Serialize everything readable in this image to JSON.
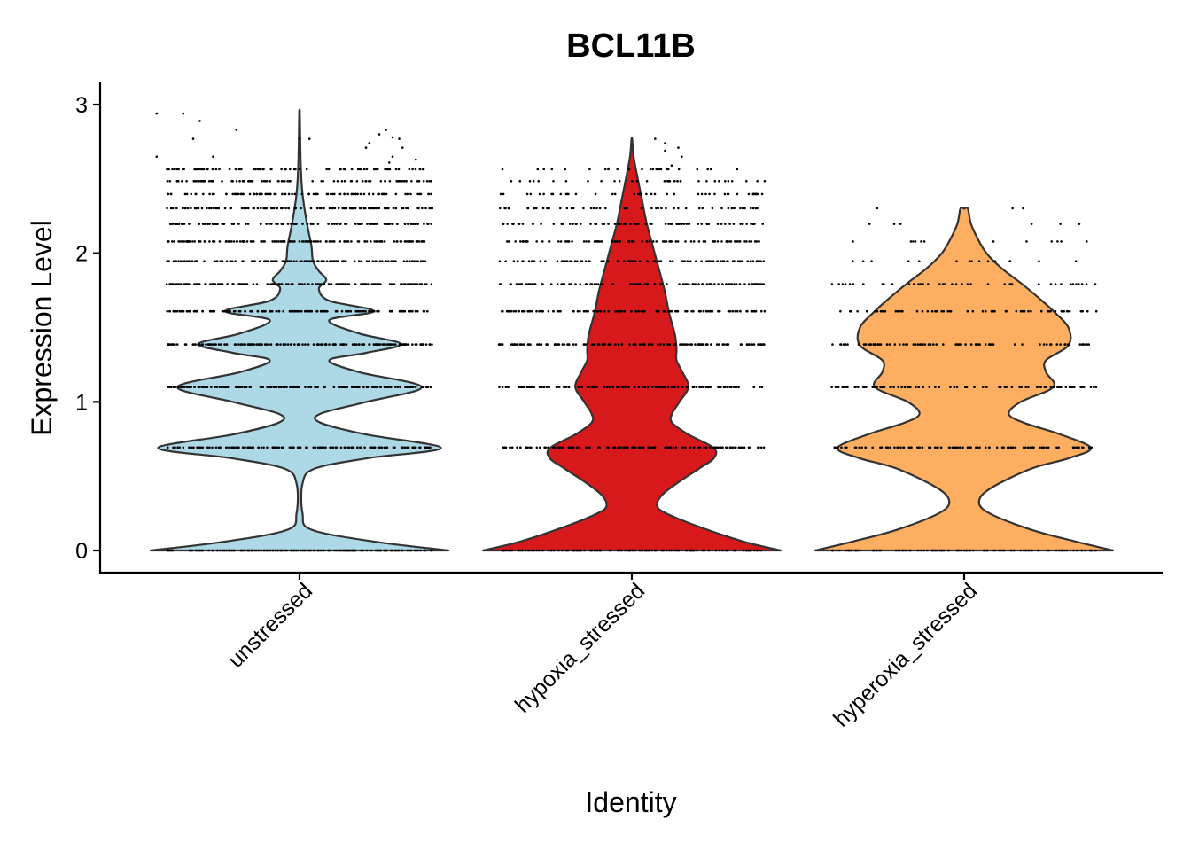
{
  "chart_data": {
    "type": "violin",
    "title": "BCL11B",
    "xlabel": "Identity",
    "ylabel": "Expression Level",
    "ylim": [
      -0.15,
      3.15
    ],
    "yticks": [
      0,
      1,
      2,
      3
    ],
    "grid": false,
    "legend": "none",
    "categories": [
      "unstressed",
      "hypoxia_stressed",
      "hyperoxia_stressed"
    ],
    "colors": [
      "#add8e6",
      "#d7191c",
      "#fdae61"
    ],
    "discrete_levels": [
      0,
      0.693,
      1.099,
      1.386,
      1.609,
      1.792,
      1.946,
      2.079,
      2.197,
      2.303,
      2.398,
      2.485,
      2.565
    ],
    "series": [
      {
        "name": "unstressed",
        "max": 2.94,
        "density": [
          [
            0,
            1
          ],
          [
            0.06,
            0.5
          ],
          [
            0.14,
            0.08
          ],
          [
            0.25,
            0.02
          ],
          [
            0.45,
            0.02
          ],
          [
            0.55,
            0.1
          ],
          [
            0.62,
            0.45
          ],
          [
            0.69,
            0.95
          ],
          [
            0.78,
            0.45
          ],
          [
            0.86,
            0.14
          ],
          [
            0.92,
            0.14
          ],
          [
            1.0,
            0.45
          ],
          [
            1.1,
            0.82
          ],
          [
            1.2,
            0.4
          ],
          [
            1.28,
            0.2
          ],
          [
            1.33,
            0.45
          ],
          [
            1.39,
            0.68
          ],
          [
            1.46,
            0.4
          ],
          [
            1.55,
            0.2
          ],
          [
            1.61,
            0.5
          ],
          [
            1.68,
            0.2
          ],
          [
            1.76,
            0.13
          ],
          [
            1.82,
            0.18
          ],
          [
            1.88,
            0.13
          ],
          [
            1.95,
            0.09
          ],
          [
            2.05,
            0.08
          ],
          [
            2.2,
            0.05
          ],
          [
            2.4,
            0.02
          ],
          [
            2.6,
            0.008
          ],
          [
            2.94,
            0.002
          ]
        ],
        "points_per_level": [
          170,
          150,
          150,
          150,
          150,
          150,
          140,
          140,
          110,
          110,
          95,
          90,
          75
        ],
        "outliers": [
          [
            -0.43,
            2.94
          ],
          [
            -0.35,
            2.94
          ],
          [
            -0.3,
            2.89
          ],
          [
            -0.32,
            2.77
          ],
          [
            -0.19,
            2.83
          ],
          [
            0.0,
            2.77
          ],
          [
            0.03,
            2.77
          ],
          [
            0.2,
            2.71
          ],
          [
            0.21,
            2.74
          ],
          [
            0.24,
            2.8
          ],
          [
            0.26,
            2.83
          ],
          [
            0.28,
            2.78
          ],
          [
            0.3,
            2.77
          ],
          [
            0.31,
            2.71
          ],
          [
            0.28,
            2.65
          ],
          [
            0.27,
            2.61
          ],
          [
            -0.43,
            2.65
          ],
          [
            -0.26,
            2.65
          ],
          [
            0.35,
            2.63
          ]
        ]
      },
      {
        "name": "hypoxia_stressed",
        "max": 2.77,
        "density": [
          [
            0,
            1
          ],
          [
            0.06,
            0.75
          ],
          [
            0.16,
            0.45
          ],
          [
            0.25,
            0.23
          ],
          [
            0.3,
            0.17
          ],
          [
            0.37,
            0.2
          ],
          [
            0.45,
            0.3
          ],
          [
            0.55,
            0.45
          ],
          [
            0.62,
            0.55
          ],
          [
            0.69,
            0.55
          ],
          [
            0.78,
            0.38
          ],
          [
            0.86,
            0.27
          ],
          [
            0.92,
            0.27
          ],
          [
            1.0,
            0.32
          ],
          [
            1.1,
            0.38
          ],
          [
            1.2,
            0.34
          ],
          [
            1.28,
            0.3
          ],
          [
            1.35,
            0.3
          ],
          [
            1.45,
            0.29
          ],
          [
            1.6,
            0.25
          ],
          [
            1.75,
            0.22
          ],
          [
            1.9,
            0.18
          ],
          [
            2.05,
            0.14
          ],
          [
            2.2,
            0.1
          ],
          [
            2.35,
            0.07
          ],
          [
            2.5,
            0.04
          ],
          [
            2.65,
            0.012
          ],
          [
            2.77,
            0.002
          ]
        ],
        "points_per_level": [
          130,
          120,
          120,
          120,
          115,
          110,
          100,
          95,
          75,
          55,
          45,
          35,
          25
        ],
        "outliers": [
          [
            0.07,
            2.77
          ],
          [
            0.1,
            2.74
          ],
          [
            0.14,
            2.71
          ],
          [
            0.15,
            2.65
          ],
          [
            0.12,
            2.59
          ],
          [
            0.1,
            2.69
          ],
          [
            -0.07,
            2.57
          ]
        ]
      },
      {
        "name": "hyperoxia_stressed",
        "max": 2.3,
        "density": [
          [
            0,
            1
          ],
          [
            0.06,
            0.75
          ],
          [
            0.14,
            0.45
          ],
          [
            0.25,
            0.17
          ],
          [
            0.33,
            0.1
          ],
          [
            0.42,
            0.18
          ],
          [
            0.55,
            0.45
          ],
          [
            0.62,
            0.7
          ],
          [
            0.69,
            0.85
          ],
          [
            0.78,
            0.65
          ],
          [
            0.86,
            0.4
          ],
          [
            0.92,
            0.3
          ],
          [
            1.0,
            0.38
          ],
          [
            1.1,
            0.6
          ],
          [
            1.2,
            0.55
          ],
          [
            1.28,
            0.55
          ],
          [
            1.38,
            0.7
          ],
          [
            1.5,
            0.7
          ],
          [
            1.61,
            0.6
          ],
          [
            1.7,
            0.5
          ],
          [
            1.8,
            0.38
          ],
          [
            1.9,
            0.25
          ],
          [
            2.0,
            0.15
          ],
          [
            2.1,
            0.09
          ],
          [
            2.2,
            0.045
          ],
          [
            2.3,
            0.025
          ]
        ],
        "points_per_level": [
          110,
          100,
          90,
          80,
          60,
          40,
          15,
          12,
          6,
          3,
          0,
          0,
          0
        ],
        "outliers": []
      }
    ]
  }
}
